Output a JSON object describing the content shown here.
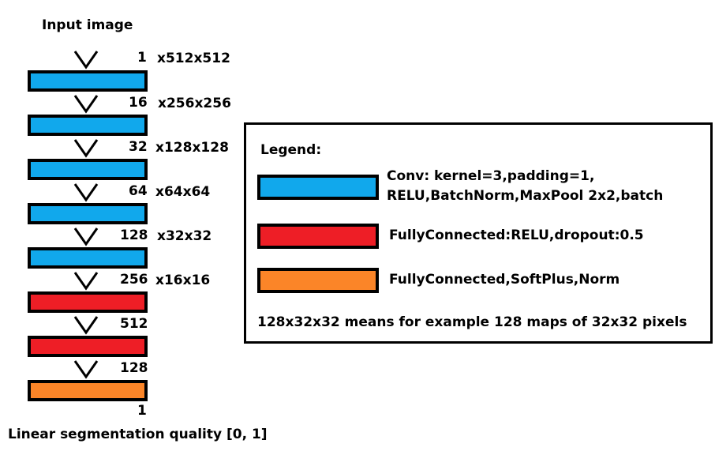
{
  "title": "Input image",
  "footer": "Linear segmentation quality [0, 1]",
  "layers": [
    {
      "label_num": "1",
      "label_dim": "x512x512",
      "type": "conv",
      "color": "#11a8ec"
    },
    {
      "label_num": "16",
      "label_dim": "x256x256",
      "type": "conv",
      "color": "#11a8ec"
    },
    {
      "label_num": "32",
      "label_dim": "x128x128",
      "type": "conv",
      "color": "#11a8ec"
    },
    {
      "label_num": "64",
      "label_dim": "x64x64",
      "type": "conv",
      "color": "#11a8ec"
    },
    {
      "label_num": "128",
      "label_dim": "x32x32",
      "type": "conv",
      "color": "#11a8ec"
    },
    {
      "label_num": "256",
      "label_dim": "x16x16",
      "type": "fc",
      "color": "#ee1e26"
    },
    {
      "label_num": "512",
      "label_dim": "",
      "type": "fc",
      "color": "#ee1e26"
    },
    {
      "label_num": "128",
      "label_dim": "",
      "type": "output",
      "color": "#fb8528"
    }
  ],
  "output_num": "1",
  "legend": {
    "title": "Legend:",
    "conv_line1": "Conv: kernel=3,padding=1,",
    "conv_line2": "RELU,BatchNorm,MaxPool 2x2,batch",
    "fc": "FullyConnected:RELU,dropout:0.5",
    "output": "FullyConnected,SoftPlus,Norm",
    "note": "128x32x32 means for example 128 maps of 32x32 pixels"
  },
  "colors": {
    "conv": "#11a8ec",
    "fc": "#ee1e26",
    "output": "#fb8528"
  }
}
